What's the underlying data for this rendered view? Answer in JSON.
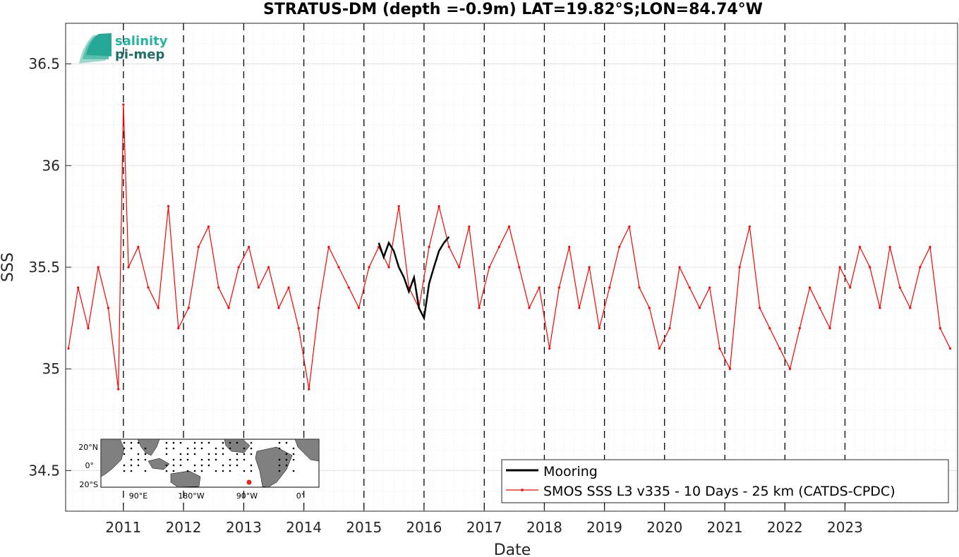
{
  "chart_data": {
    "type": "line",
    "title": "STRATUS-DM (depth =-0.9m) LAT=19.82°S;LON=84.74°W",
    "xlabel": "Date",
    "ylabel": "SSS",
    "xlim": [
      "2010-01-15",
      "2024-11-15"
    ],
    "ylim": [
      34.3,
      36.7
    ],
    "y_ticks": [
      "34.5",
      "35",
      "35.5",
      "36",
      "36.5"
    ],
    "x_ticks": [
      "2011",
      "2012",
      "2013",
      "2014",
      "2015",
      "2016",
      "2017",
      "2018",
      "2019",
      "2020",
      "2021",
      "2022",
      "2023"
    ],
    "grid": true,
    "year_boundary_lines": "dashed",
    "legend_position": "bottom-right",
    "colors": {
      "mooring": "#000000",
      "smos": "#ff0000"
    },
    "series": [
      {
        "name": "Mooring",
        "x": [
          "2015-04-01",
          "2015-05-01",
          "2015-06-01",
          "2015-07-01",
          "2015-08-01",
          "2015-09-01",
          "2015-10-01",
          "2015-11-01",
          "2015-12-01",
          "2016-01-01",
          "2016-02-01",
          "2016-03-01",
          "2016-04-01",
          "2016-05-01",
          "2016-06-01"
        ],
        "values": [
          35.62,
          35.55,
          35.62,
          35.58,
          35.5,
          35.45,
          35.38,
          35.45,
          35.3,
          35.25,
          35.42,
          35.5,
          35.58,
          35.62,
          35.65
        ]
      },
      {
        "name": "SMOS SSS L3 v335 - 10 Days - 25 km (CATDS-CPDC)",
        "x": [
          "2010-02-01",
          "2010-04-01",
          "2010-06-01",
          "2010-08-01",
          "2010-10-01",
          "2010-12-01",
          "2011-01-01",
          "2011-02-01",
          "2011-04-01",
          "2011-06-01",
          "2011-08-01",
          "2011-10-01",
          "2011-12-01",
          "2012-02-01",
          "2012-04-01",
          "2012-06-01",
          "2012-08-01",
          "2012-10-01",
          "2012-12-01",
          "2013-02-01",
          "2013-04-01",
          "2013-06-01",
          "2013-08-01",
          "2013-10-01",
          "2013-12-01",
          "2014-02-01",
          "2014-04-01",
          "2014-06-01",
          "2014-08-01",
          "2014-10-01",
          "2014-12-01",
          "2015-02-01",
          "2015-04-01",
          "2015-06-01",
          "2015-08-01",
          "2015-10-01",
          "2015-12-01",
          "2016-02-01",
          "2016-04-01",
          "2016-06-01",
          "2016-08-01",
          "2016-10-01",
          "2016-12-01",
          "2017-02-01",
          "2017-04-01",
          "2017-06-01",
          "2017-08-01",
          "2017-10-01",
          "2017-12-01",
          "2018-02-01",
          "2018-04-01",
          "2018-06-01",
          "2018-08-01",
          "2018-10-01",
          "2018-12-01",
          "2019-02-01",
          "2019-04-01",
          "2019-06-01",
          "2019-08-01",
          "2019-10-01",
          "2019-12-01",
          "2020-02-01",
          "2020-04-01",
          "2020-06-01",
          "2020-08-01",
          "2020-10-01",
          "2020-12-01",
          "2021-02-01",
          "2021-04-01",
          "2021-06-01",
          "2021-08-01",
          "2021-10-01",
          "2021-12-01",
          "2022-02-01",
          "2022-04-01",
          "2022-06-01",
          "2022-08-01",
          "2022-10-01",
          "2022-12-01",
          "2023-02-01",
          "2023-04-01",
          "2023-06-01",
          "2023-08-01",
          "2023-10-01",
          "2023-12-01",
          "2024-02-01",
          "2024-04-01",
          "2024-06-01",
          "2024-08-01",
          "2024-10-01"
        ],
        "values": [
          35.1,
          35.4,
          35.2,
          35.5,
          35.3,
          34.9,
          36.3,
          35.5,
          35.6,
          35.4,
          35.3,
          35.8,
          35.2,
          35.3,
          35.6,
          35.7,
          35.4,
          35.3,
          35.5,
          35.6,
          35.4,
          35.5,
          35.3,
          35.4,
          35.2,
          34.9,
          35.3,
          35.6,
          35.5,
          35.4,
          35.3,
          35.5,
          35.6,
          35.5,
          35.8,
          35.4,
          35.3,
          35.6,
          35.8,
          35.6,
          35.5,
          35.7,
          35.3,
          35.5,
          35.6,
          35.7,
          35.5,
          35.3,
          35.4,
          35.1,
          35.4,
          35.6,
          35.3,
          35.5,
          35.2,
          35.4,
          35.6,
          35.7,
          35.4,
          35.3,
          35.1,
          35.2,
          35.5,
          35.4,
          35.3,
          35.4,
          35.1,
          35.0,
          35.5,
          35.7,
          35.3,
          35.2,
          35.1,
          35.0,
          35.2,
          35.4,
          35.3,
          35.2,
          35.5,
          35.4,
          35.6,
          35.5,
          35.3,
          35.6,
          35.4,
          35.3,
          35.5,
          35.6,
          35.2,
          35.1
        ]
      }
    ]
  },
  "logo": {
    "line1": "salinity",
    "line2": "pi-mep"
  },
  "inset_map": {
    "y_ticks": [
      "20°N",
      "0°",
      "20°S"
    ],
    "x_ticks": [
      "90°E",
      "180°W",
      "90°W",
      "0°"
    ],
    "marker_color": "#e8241a"
  }
}
